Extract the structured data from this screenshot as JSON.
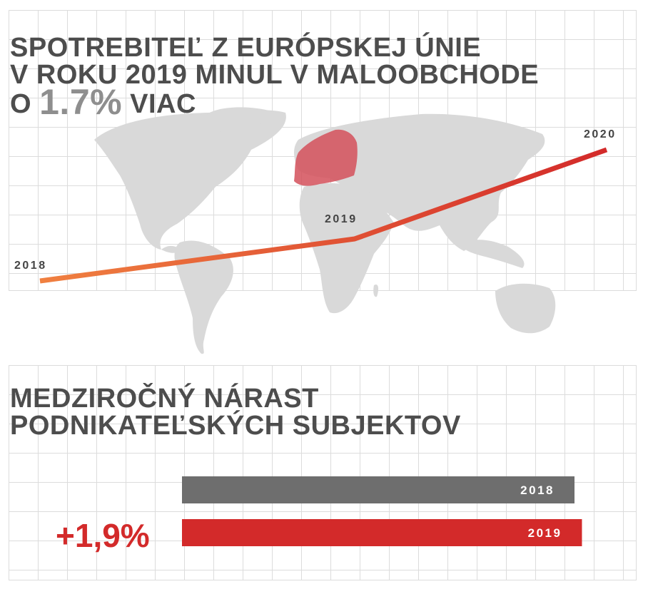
{
  "top": {
    "title_line1": "SPOTREBITEĽ Z EURÓPSKEJ ÚNIE",
    "title_line2": "V ROKU 2019 MINUL V MALOOBCHODE",
    "title_line3_pre": "O",
    "title_line3_big": "1.7%",
    "title_line3_post": "VIAC"
  },
  "bottom": {
    "title_line1": "MEDZIROČNÝ NÁRAST",
    "title_line2": "PODNIKATEĽSKÝCH SUBJEKTOV",
    "change_label": "+1,9%"
  },
  "colors": {
    "line_start": "#f08040",
    "line_end": "#d32a2a",
    "bar_2018": "#6e6e6e",
    "bar_2019": "#d32a2a",
    "map": "#d9d9d9",
    "europe": "#d4505a"
  },
  "chart_data": [
    {
      "type": "line",
      "x": [
        "2018",
        "2019",
        "2020"
      ],
      "series": [
        {
          "values": [
            100,
            101.7,
            105.3
          ]
        }
      ],
      "title": "",
      "xlabel": "",
      "ylabel": ""
    },
    {
      "type": "bar",
      "orientation": "horizontal",
      "categories": [
        "2018",
        "2019"
      ],
      "values": [
        100,
        101.9
      ]
    }
  ]
}
